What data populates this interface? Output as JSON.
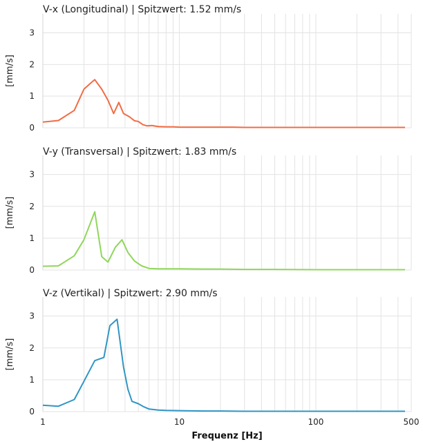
{
  "chart_data": [
    {
      "type": "line",
      "title": "V-x (Longitudinal) | Spitzwert: 1.52 mm/s",
      "ylabel": "[mm/s]",
      "xscale": "log",
      "xlim": [
        1,
        500
      ],
      "ylim": [
        0,
        3.6
      ],
      "yticks": [
        "0",
        "1",
        "2",
        "3"
      ],
      "ytick_values": [
        0,
        1,
        2,
        3
      ],
      "grid": true,
      "color": "#f26b43",
      "x": [
        1,
        1.3,
        1.7,
        2.0,
        2.2,
        2.4,
        2.7,
        3.0,
        3.3,
        3.6,
        3.9,
        4.3,
        4.7,
        5.0,
        5.4,
        5.8,
        6.3,
        7,
        8,
        9,
        10,
        12,
        15,
        20,
        25,
        30,
        40,
        60,
        100,
        200,
        450
      ],
      "y": [
        0.18,
        0.23,
        0.55,
        1.22,
        1.38,
        1.52,
        1.22,
        0.87,
        0.45,
        0.8,
        0.45,
        0.35,
        0.22,
        0.2,
        0.1,
        0.06,
        0.07,
        0.04,
        0.03,
        0.03,
        0.02,
        0.02,
        0.02,
        0.02,
        0.02,
        0.01,
        0.01,
        0.01,
        0.01,
        0.01,
        0.01
      ]
    },
    {
      "type": "line",
      "title": "V-y (Transversal) | Spitzwert: 1.83 mm/s",
      "ylabel": "[mm/s]",
      "xscale": "log",
      "xlim": [
        1,
        500
      ],
      "ylim": [
        0,
        3.6
      ],
      "yticks": [
        "0",
        "1",
        "2",
        "3"
      ],
      "ytick_values": [
        0,
        1,
        2,
        3
      ],
      "grid": true,
      "color": "#8fd65a",
      "x": [
        1,
        1.3,
        1.7,
        2.0,
        2.4,
        2.7,
        3.0,
        3.4,
        3.8,
        4.2,
        4.7,
        5.3,
        6.0,
        7,
        8,
        10,
        15,
        20,
        30,
        50,
        100,
        200,
        450
      ],
      "y": [
        0.12,
        0.13,
        0.45,
        0.95,
        1.83,
        0.42,
        0.25,
        0.72,
        0.95,
        0.55,
        0.28,
        0.13,
        0.05,
        0.04,
        0.04,
        0.04,
        0.03,
        0.03,
        0.02,
        0.02,
        0.01,
        0.01,
        0.01
      ]
    },
    {
      "type": "line",
      "title": "V-z (Vertikal) | Spitzwert: 2.90 mm/s",
      "ylabel": "[mm/s]",
      "xlabel": "Frequenz [Hz]",
      "xscale": "log",
      "xlim": [
        1,
        500
      ],
      "ylim": [
        0,
        3.6
      ],
      "xticks": [
        "1",
        "10",
        "100",
        "500"
      ],
      "xtick_values": [
        1,
        10,
        100,
        500
      ],
      "yticks": [
        "0",
        "1",
        "2",
        "3"
      ],
      "ytick_values": [
        0,
        1,
        2,
        3
      ],
      "grid": true,
      "color": "#2f95c4",
      "x": [
        1,
        1.3,
        1.7,
        2.0,
        2.4,
        2.8,
        3.1,
        3.5,
        3.9,
        4.2,
        4.5,
        5.0,
        5.5,
        6.0,
        7,
        8,
        10,
        15,
        20,
        30,
        50,
        100,
        200,
        450
      ],
      "y": [
        0.2,
        0.17,
        0.38,
        0.95,
        1.6,
        1.7,
        2.7,
        2.9,
        1.4,
        0.7,
        0.32,
        0.25,
        0.15,
        0.08,
        0.05,
        0.04,
        0.03,
        0.02,
        0.02,
        0.01,
        0.01,
        0.01,
        0.01,
        0.01
      ]
    }
  ]
}
